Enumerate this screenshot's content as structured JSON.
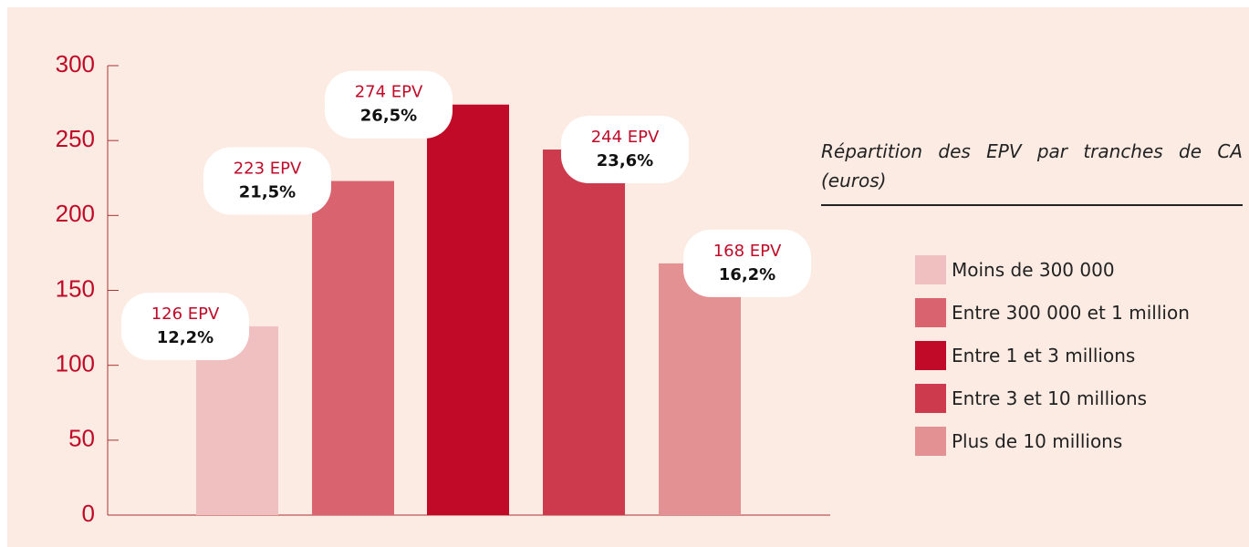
{
  "chart_data": {
    "type": "bar",
    "title": "Répartition des EPV par tranches de CA (euros)",
    "categories": [
      "Moins de 300 000",
      "Entre 300 000 et 1 million",
      "Entre 1 et 3 millions",
      "Entre 3 et 10 millions",
      "Plus de 10 millions"
    ],
    "values": [
      126,
      223,
      274,
      244,
      168
    ],
    "value_labels": [
      "126 EPV",
      "223 EPV",
      "274 EPV",
      "244 EPV",
      "168 EPV"
    ],
    "percents": [
      12.2,
      21.5,
      26.5,
      23.6,
      16.2
    ],
    "percent_labels": [
      "12,2%",
      "21,5%",
      "26,5%",
      "23,6%",
      "16,2%"
    ],
    "colors": [
      "#f0bfbf",
      "#d9646f",
      "#c00a27",
      "#cd3a4d",
      "#e39193"
    ],
    "ylim": [
      0,
      300
    ],
    "yticks": [
      0,
      50,
      100,
      150,
      200,
      250,
      300
    ],
    "legend": "right"
  }
}
